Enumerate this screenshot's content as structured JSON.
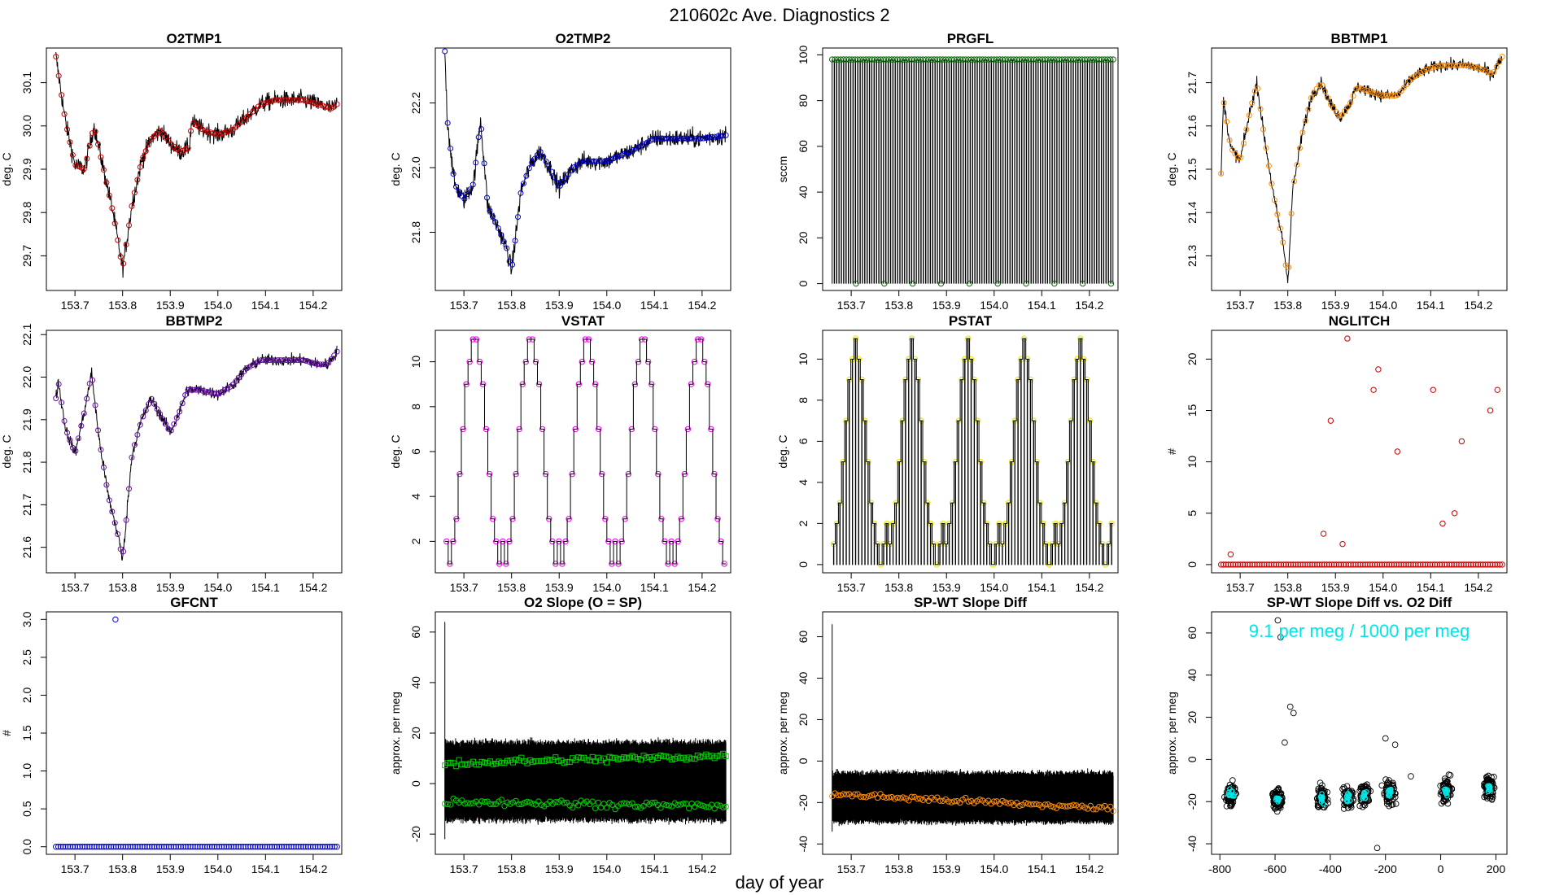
{
  "figure_title": "210602c   Ave. Diagnostics 2",
  "xlabel_common": "day of year",
  "chart_data": [
    {
      "id": "o2tmp1",
      "type": "line",
      "title": "O2TMP1",
      "ylabel": "deg. C",
      "xlim": [
        153.64,
        154.26
      ],
      "ylim": [
        29.62,
        30.18
      ],
      "xticks": [
        153.7,
        153.8,
        153.9,
        154.0,
        154.1,
        154.2
      ],
      "xticklabels": [
        "153.7",
        "153.8",
        "153.9",
        "154.0",
        "154.1",
        "154.2"
      ],
      "yticks": [
        29.7,
        29.8,
        29.9,
        30.0,
        30.1
      ],
      "yticklabels": [
        "29.7",
        "29.8",
        "29.9",
        "30.0",
        "30.1"
      ],
      "marker_color": "#cc0000",
      "noise": 0.018,
      "points": [
        [
          153.66,
          30.16
        ],
        [
          153.68,
          30.01
        ],
        [
          153.7,
          29.91
        ],
        [
          153.72,
          29.9
        ],
        [
          153.74,
          30.0
        ],
        [
          153.76,
          29.9
        ],
        [
          153.78,
          29.8
        ],
        [
          153.8,
          29.67
        ],
        [
          153.82,
          29.82
        ],
        [
          153.84,
          29.92
        ],
        [
          153.86,
          29.97
        ],
        [
          153.88,
          29.99
        ],
        [
          153.9,
          29.96
        ],
        [
          153.92,
          29.94
        ],
        [
          153.94,
          29.95
        ],
        [
          153.945,
          30.01
        ],
        [
          153.97,
          29.99
        ],
        [
          154.0,
          29.98
        ],
        [
          154.03,
          29.99
        ],
        [
          154.06,
          30.02
        ],
        [
          154.09,
          30.05
        ],
        [
          154.12,
          30.06
        ],
        [
          154.15,
          30.06
        ],
        [
          154.18,
          30.06
        ],
        [
          154.21,
          30.05
        ],
        [
          154.24,
          30.04
        ],
        [
          154.25,
          30.05
        ]
      ]
    },
    {
      "id": "o2tmp2",
      "type": "line",
      "title": "O2TMP2",
      "ylabel": "deg. C",
      "xlim": [
        153.64,
        154.26
      ],
      "ylim": [
        21.62,
        22.37
      ],
      "xticks": [
        153.7,
        153.8,
        153.9,
        154.0,
        154.1,
        154.2
      ],
      "xticklabels": [
        "153.7",
        "153.8",
        "153.9",
        "154.0",
        "154.1",
        "154.2"
      ],
      "yticks": [
        21.8,
        22.0,
        22.2
      ],
      "yticklabels": [
        "21.8",
        "22.0",
        "22.2"
      ],
      "marker_color": "#0000cc",
      "noise": 0.025,
      "points": [
        [
          153.66,
          22.36
        ],
        [
          153.665,
          22.15
        ],
        [
          153.68,
          21.95
        ],
        [
          153.7,
          21.9
        ],
        [
          153.72,
          21.95
        ],
        [
          153.735,
          22.15
        ],
        [
          153.75,
          21.88
        ],
        [
          153.77,
          21.82
        ],
        [
          153.79,
          21.75
        ],
        [
          153.8,
          21.68
        ],
        [
          153.82,
          21.93
        ],
        [
          153.84,
          22.01
        ],
        [
          153.86,
          22.05
        ],
        [
          153.88,
          22.0
        ],
        [
          153.9,
          21.94
        ],
        [
          153.93,
          22.0
        ],
        [
          153.95,
          22.02
        ],
        [
          154.0,
          22.02
        ],
        [
          154.05,
          22.05
        ],
        [
          154.1,
          22.09
        ],
        [
          154.15,
          22.09
        ],
        [
          154.2,
          22.09
        ],
        [
          154.25,
          22.1
        ]
      ]
    },
    {
      "id": "prgfl",
      "type": "spikes",
      "title": "PRGFL",
      "ylabel": "sccm",
      "xlim": [
        153.64,
        154.26
      ],
      "ylim": [
        -3,
        103
      ],
      "xticks": [
        153.7,
        153.8,
        153.9,
        154.0,
        154.1,
        154.2
      ],
      "xticklabels": [
        "153.7",
        "153.8",
        "153.9",
        "154.0",
        "154.1",
        "154.2"
      ],
      "yticks": [
        0,
        20,
        40,
        60,
        80,
        100
      ],
      "yticklabels": [
        "0",
        "20",
        "40",
        "60",
        "80",
        "100"
      ],
      "marker_color": "#006400",
      "x_start": 153.66,
      "x_end": 154.25,
      "high": 98,
      "low": 0,
      "n_spikes": 120
    },
    {
      "id": "bbtmp1",
      "type": "line",
      "title": "BBTMP1",
      "ylabel": "deg. C",
      "xlim": [
        153.64,
        154.26
      ],
      "ylim": [
        21.22,
        21.78
      ],
      "xticks": [
        153.7,
        153.8,
        153.9,
        154.0,
        154.1,
        154.2
      ],
      "xticklabels": [
        "153.7",
        "153.8",
        "153.9",
        "154.0",
        "154.1",
        "154.2"
      ],
      "yticks": [
        21.3,
        21.4,
        21.5,
        21.6,
        21.7
      ],
      "yticklabels": [
        "21.3",
        "21.4",
        "21.5",
        "21.6",
        "21.7"
      ],
      "marker_color": "#ff8c00",
      "noise": 0.012,
      "points": [
        [
          153.66,
          21.49
        ],
        [
          153.665,
          21.66
        ],
        [
          153.68,
          21.55
        ],
        [
          153.7,
          21.52
        ],
        [
          153.72,
          21.63
        ],
        [
          153.735,
          21.7
        ],
        [
          153.75,
          21.58
        ],
        [
          153.77,
          21.44
        ],
        [
          153.79,
          21.33
        ],
        [
          153.8,
          21.24
        ],
        [
          153.81,
          21.45
        ],
        [
          153.83,
          21.58
        ],
        [
          153.85,
          21.67
        ],
        [
          153.87,
          21.7
        ],
        [
          153.89,
          21.65
        ],
        [
          153.91,
          21.62
        ],
        [
          153.93,
          21.65
        ],
        [
          153.945,
          21.69
        ],
        [
          153.97,
          21.68
        ],
        [
          154.0,
          21.67
        ],
        [
          154.03,
          21.67
        ],
        [
          154.06,
          21.71
        ],
        [
          154.09,
          21.73
        ],
        [
          154.12,
          21.74
        ],
        [
          154.15,
          21.74
        ],
        [
          154.18,
          21.74
        ],
        [
          154.21,
          21.73
        ],
        [
          154.23,
          21.72
        ],
        [
          154.25,
          21.76
        ]
      ]
    },
    {
      "id": "bbtmp2",
      "type": "line",
      "title": "BBTMP2",
      "ylabel": "deg. C",
      "xlim": [
        153.64,
        154.26
      ],
      "ylim": [
        21.54,
        22.11
      ],
      "xticks": [
        153.7,
        153.8,
        153.9,
        154.0,
        154.1,
        154.2
      ],
      "xticklabels": [
        "153.7",
        "153.8",
        "153.9",
        "154.0",
        "154.1",
        "154.2"
      ],
      "yticks": [
        21.6,
        21.7,
        21.8,
        21.9,
        22.0,
        22.1
      ],
      "yticklabels": [
        "21.6",
        "21.7",
        "21.8",
        "21.9",
        "22.0",
        "22.1"
      ],
      "marker_color": "#6a0dad",
      "noise": 0.012,
      "points": [
        [
          153.66,
          21.95
        ],
        [
          153.665,
          21.99
        ],
        [
          153.68,
          21.88
        ],
        [
          153.7,
          21.82
        ],
        [
          153.72,
          21.92
        ],
        [
          153.735,
          22.01
        ],
        [
          153.75,
          21.86
        ],
        [
          153.77,
          21.72
        ],
        [
          153.79,
          21.63
        ],
        [
          153.8,
          21.57
        ],
        [
          153.82,
          21.82
        ],
        [
          153.84,
          21.9
        ],
        [
          153.86,
          21.95
        ],
        [
          153.88,
          21.91
        ],
        [
          153.9,
          21.87
        ],
        [
          153.92,
          21.92
        ],
        [
          153.935,
          21.97
        ],
        [
          153.96,
          21.97
        ],
        [
          154.0,
          21.96
        ],
        [
          154.03,
          21.98
        ],
        [
          154.06,
          22.02
        ],
        [
          154.09,
          22.04
        ],
        [
          154.12,
          22.04
        ],
        [
          154.15,
          22.04
        ],
        [
          154.18,
          22.04
        ],
        [
          154.21,
          22.03
        ],
        [
          154.23,
          22.03
        ],
        [
          154.25,
          22.06
        ]
      ]
    },
    {
      "id": "vstat",
      "type": "stairs",
      "title": "VSTAT",
      "ylabel": "deg. C",
      "xlim": [
        153.64,
        154.26
      ],
      "ylim": [
        0.6,
        11.4
      ],
      "xticks": [
        153.7,
        153.8,
        153.9,
        154.0,
        154.1,
        154.2
      ],
      "xticklabels": [
        "153.7",
        "153.8",
        "153.9",
        "154.0",
        "154.1",
        "154.2"
      ],
      "yticks": [
        2,
        4,
        6,
        8,
        10
      ],
      "yticklabels": [
        "2",
        "4",
        "6",
        "8",
        "10"
      ],
      "marker_color": "#ee00ee",
      "x_start": 153.66,
      "x_end": 154.25,
      "levels": [
        2,
        1,
        2,
        3,
        5,
        7,
        9,
        10,
        11,
        11,
        10,
        9,
        7,
        5,
        3,
        2,
        1
      ],
      "n_periods": 5
    },
    {
      "id": "pstat",
      "type": "spiky_stairs",
      "title": "PSTAT",
      "ylabel": "deg. C",
      "xlim": [
        153.64,
        154.26
      ],
      "ylim": [
        -0.4,
        11.4
      ],
      "xticks": [
        153.7,
        153.8,
        153.9,
        154.0,
        154.1,
        154.2
      ],
      "xticklabels": [
        "153.7",
        "153.8",
        "153.9",
        "154.0",
        "154.1",
        "154.2"
      ],
      "yticks": [
        0,
        2,
        4,
        6,
        8,
        10
      ],
      "yticklabels": [
        "0",
        "2",
        "4",
        "6",
        "8",
        "10"
      ],
      "marker_color": "#e6e600",
      "x_start": 153.66,
      "x_end": 154.25,
      "levels": [
        1,
        2,
        3,
        5,
        7,
        9,
        10,
        11,
        10,
        9,
        7,
        5,
        3,
        2,
        1,
        0,
        1,
        2
      ],
      "n_periods": 5
    },
    {
      "id": "nglitch",
      "type": "scatter",
      "title": "NGLITCH",
      "ylabel": "#",
      "xlim": [
        153.64,
        154.26
      ],
      "ylim": [
        -0.8,
        22.8
      ],
      "xticks": [
        153.7,
        153.8,
        153.9,
        154.0,
        154.1,
        154.2
      ],
      "xticklabels": [
        "153.7",
        "153.8",
        "153.9",
        "154.0",
        "154.1",
        "154.2"
      ],
      "yticks": [
        0,
        5,
        10,
        15,
        20
      ],
      "yticklabels": [
        "0",
        "5",
        "10",
        "15",
        "20"
      ],
      "marker_color": "#cc0000",
      "baseline_x_start": 153.66,
      "baseline_x_end": 154.25,
      "baseline_n": 118,
      "baseline_y": 0,
      "points": [
        [
          153.68,
          1
        ],
        [
          153.875,
          3
        ],
        [
          153.89,
          14
        ],
        [
          153.915,
          2
        ],
        [
          153.925,
          22
        ],
        [
          153.98,
          17
        ],
        [
          153.99,
          19
        ],
        [
          154.03,
          11
        ],
        [
          154.105,
          17
        ],
        [
          154.125,
          4
        ],
        [
          154.15,
          5
        ],
        [
          154.165,
          12
        ],
        [
          154.225,
          15
        ],
        [
          154.24,
          17
        ]
      ]
    },
    {
      "id": "gfcnt",
      "type": "scatter",
      "title": "GFCNT",
      "ylabel": "#",
      "xlim": [
        153.64,
        154.26
      ],
      "ylim": [
        -0.1,
        3.1
      ],
      "xticks": [
        153.7,
        153.8,
        153.9,
        154.0,
        154.1,
        154.2
      ],
      "xticklabels": [
        "153.7",
        "153.8",
        "153.9",
        "154.0",
        "154.1",
        "154.2"
      ],
      "yticks": [
        0.0,
        0.5,
        1.0,
        1.5,
        2.0,
        2.5,
        3.0
      ],
      "yticklabels": [
        "0.0",
        "0.5",
        "1.0",
        "1.5",
        "2.0",
        "2.5",
        "3.0"
      ],
      "marker_color": "#0000cc",
      "baseline_x_start": 153.66,
      "baseline_x_end": 154.25,
      "baseline_n": 118,
      "baseline_y": 0,
      "points": [
        [
          153.785,
          3.0
        ]
      ]
    },
    {
      "id": "o2slope",
      "type": "band",
      "title": "O2 Slope (O = SP)",
      "ylabel": "approx. per meg",
      "xlim": [
        153.64,
        154.26
      ],
      "ylim": [
        -28,
        68
      ],
      "xticks": [
        153.7,
        153.8,
        153.9,
        154.0,
        154.1,
        154.2
      ],
      "xticklabels": [
        "153.7",
        "153.8",
        "153.9",
        "154.0",
        "154.1",
        "154.2"
      ],
      "yticks": [
        -20,
        0,
        20,
        40,
        60
      ],
      "yticklabels": [
        "-20",
        "0",
        "20",
        "40",
        "60"
      ],
      "marker_color": "#00cc00",
      "x_start": 153.66,
      "x_end": 154.25,
      "band_low": -14,
      "band_high": 16,
      "spike_top": 64,
      "spike_bottom": -22,
      "series": [
        {
          "name": "squares",
          "marker": "square",
          "y_start": 8,
          "y_end": 11
        },
        {
          "name": "circles",
          "marker": "circle",
          "y_start": -7,
          "y_end": -9
        }
      ]
    },
    {
      "id": "spwt",
      "type": "band",
      "title": "SP-WT Slope Diff",
      "ylabel": "approx. per meg",
      "xlim": [
        153.64,
        154.26
      ],
      "ylim": [
        -45,
        72
      ],
      "xticks": [
        153.7,
        153.8,
        153.9,
        154.0,
        154.1,
        154.2
      ],
      "xticklabels": [
        "153.7",
        "153.8",
        "153.9",
        "154.0",
        "154.1",
        "154.2"
      ],
      "yticks": [
        -40,
        -20,
        0,
        20,
        40,
        60
      ],
      "yticklabels": [
        "-40",
        "-20",
        "0",
        "20",
        "40",
        "60"
      ],
      "marker_color": "#ff8c00",
      "x_start": 153.66,
      "x_end": 154.25,
      "band_low": -29,
      "band_high": -6,
      "spike_top": 66,
      "spike_bottom": -34,
      "series": [
        {
          "name": "circles",
          "marker": "circle",
          "y_start": -16,
          "y_end": -23
        }
      ]
    },
    {
      "id": "spwt_vs_o2",
      "type": "scatter_clusters",
      "title": "SP-WT Slope Diff vs. O2 Diff",
      "ylabel": "approx. per meg",
      "xlim": [
        -830,
        240
      ],
      "ylim": [
        -45,
        70
      ],
      "xticks": [
        -800,
        -600,
        -400,
        -200,
        0,
        200
      ],
      "xticklabels": [
        "-800",
        "-600",
        "-400",
        "-200",
        "0",
        "200"
      ],
      "yticks": [
        -40,
        -20,
        0,
        20,
        40,
        60
      ],
      "yticklabels": [
        "-40",
        "-20",
        "0",
        "20",
        "40",
        "60"
      ],
      "annotation": "9.1 per meg / 1000 per meg",
      "annotation_color": "#00e5e5",
      "marker_color": "#00e5e5",
      "clusters": [
        {
          "x": -760,
          "y": -17
        },
        {
          "x": -590,
          "y": -19
        },
        {
          "x": -430,
          "y": -18
        },
        {
          "x": -335,
          "y": -18
        },
        {
          "x": -275,
          "y": -17
        },
        {
          "x": -185,
          "y": -16
        },
        {
          "x": 20,
          "y": -15
        },
        {
          "x": 175,
          "y": -13
        }
      ],
      "outliers": [
        [
          -590,
          66
        ],
        [
          -580,
          58
        ],
        [
          -545,
          25
        ],
        [
          -533,
          22
        ],
        [
          -565,
          8
        ],
        [
          -230,
          -42
        ],
        [
          -165,
          7
        ],
        [
          -108,
          -8
        ],
        [
          -200,
          10
        ]
      ]
    }
  ]
}
